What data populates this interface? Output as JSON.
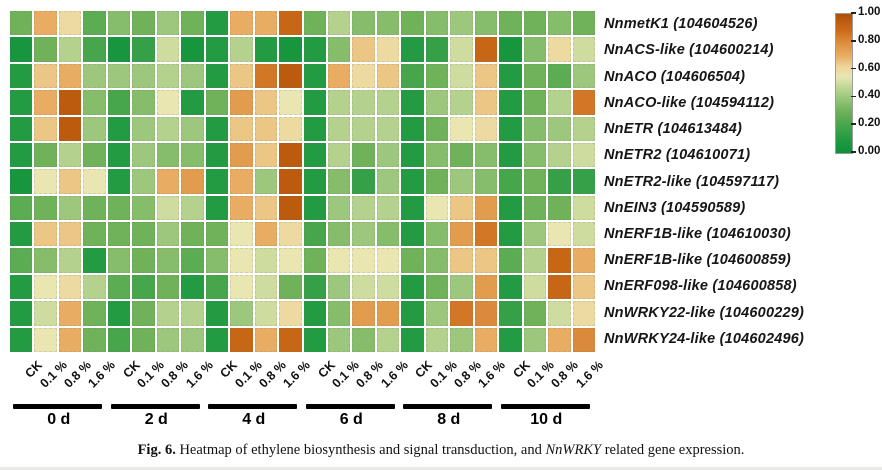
{
  "figure": {
    "caption": {
      "label": "Fig. 6.",
      "text_before_italic": "Heatmap of ethylene biosynthesis and signal transduction, and",
      "italic_term": "NnWRKY",
      "text_after_italic": "related gene expression."
    }
  },
  "colorbar": {
    "ticks": [
      "1.00",
      "0.80",
      "0.60",
      "0.40",
      "0.20",
      "0.00"
    ]
  },
  "colors": {
    "scale_stops": [
      [
        0.0,
        "#0c9138"
      ],
      [
        0.1,
        "#229b43"
      ],
      [
        0.2,
        "#47a54b"
      ],
      [
        0.3,
        "#6fb25a"
      ],
      [
        0.4,
        "#9cc77c"
      ],
      [
        0.48,
        "#c3d898"
      ],
      [
        0.55,
        "#e9e6b2"
      ],
      [
        0.62,
        "#eed59a"
      ],
      [
        0.7,
        "#e8ad62"
      ],
      [
        0.78,
        "#de9242"
      ],
      [
        0.88,
        "#cc6c18"
      ],
      [
        1.0,
        "#b04f07"
      ]
    ],
    "group_bar_color": "#000000"
  },
  "chart_data": {
    "type": "heatmap",
    "title": "Heatmap of ethylene biosynthesis and signal transduction, and NnWRKY related gene expression",
    "value_range": [
      0,
      1
    ],
    "legend_position": "right",
    "genes": [
      "NnmetK1 (104604526)",
      "NnACS-like (104600214)",
      "NnACO (104606504)",
      "NnACO-like (104594112)",
      "NnETR (104613484)",
      "NnETR2 (104610071)",
      "NnETR2-like (104597117)",
      "NnEIN3 (104590589)",
      "NnERF1B-like (104610030)",
      "NnERF1B-like (104600859)",
      "NnERF098-like (104600858)",
      "NnWRKY22-like (104600229)",
      "NnWRKY24-like (104602496)"
    ],
    "time_groups": [
      "0 d",
      "2 d",
      "4 d",
      "6 d",
      "8 d",
      "10 d"
    ],
    "treatments": [
      "CK",
      "0.1 %",
      "0.8 %",
      "1.6 %"
    ],
    "matrix": [
      [
        0.3,
        0.7,
        0.6,
        0.25,
        0.35,
        0.3,
        0.4,
        0.3,
        0.1,
        0.7,
        0.7,
        0.9,
        0.3,
        0.45,
        0.35,
        0.35,
        0.3,
        0.35,
        0.4,
        0.35,
        0.3,
        0.3,
        0.35,
        0.3
      ],
      [
        0.05,
        0.3,
        0.45,
        0.2,
        0.05,
        0.15,
        0.5,
        0.05,
        0.1,
        0.45,
        0.1,
        0.05,
        0.1,
        0.35,
        0.65,
        0.6,
        0.1,
        0.15,
        0.5,
        0.9,
        0.05,
        0.35,
        0.6,
        0.5
      ],
      [
        0.1,
        0.65,
        0.7,
        0.4,
        0.4,
        0.4,
        0.45,
        0.4,
        0.1,
        0.65,
        0.85,
        0.95,
        0.1,
        0.7,
        0.6,
        0.65,
        0.2,
        0.3,
        0.5,
        0.65,
        0.1,
        0.3,
        0.25,
        0.4
      ],
      [
        0.1,
        0.7,
        0.95,
        0.35,
        0.2,
        0.35,
        0.55,
        0.1,
        0.3,
        0.75,
        0.65,
        0.55,
        0.1,
        0.45,
        0.45,
        0.45,
        0.1,
        0.4,
        0.45,
        0.65,
        0.1,
        0.3,
        0.45,
        0.85
      ],
      [
        0.1,
        0.65,
        0.95,
        0.4,
        0.1,
        0.4,
        0.45,
        0.4,
        0.1,
        0.65,
        0.65,
        0.6,
        0.1,
        0.45,
        0.45,
        0.45,
        0.1,
        0.3,
        0.55,
        0.6,
        0.1,
        0.35,
        0.4,
        0.45
      ],
      [
        0.1,
        0.3,
        0.45,
        0.3,
        0.1,
        0.4,
        0.35,
        0.35,
        0.1,
        0.75,
        0.65,
        0.95,
        0.1,
        0.45,
        0.3,
        0.4,
        0.1,
        0.35,
        0.3,
        0.35,
        0.1,
        0.35,
        0.45,
        0.5
      ],
      [
        0.05,
        0.55,
        0.65,
        0.55,
        0.1,
        0.4,
        0.7,
        0.75,
        0.1,
        0.7,
        0.4,
        0.95,
        0.1,
        0.35,
        0.15,
        0.4,
        0.1,
        0.3,
        0.4,
        0.35,
        0.2,
        0.3,
        0.15,
        0.15
      ],
      [
        0.25,
        0.3,
        0.4,
        0.3,
        0.3,
        0.35,
        0.5,
        0.45,
        0.1,
        0.7,
        0.65,
        0.95,
        0.1,
        0.4,
        0.45,
        0.45,
        0.1,
        0.55,
        0.65,
        0.75,
        0.1,
        0.3,
        0.3,
        0.5
      ],
      [
        0.1,
        0.65,
        0.65,
        0.3,
        0.3,
        0.3,
        0.4,
        0.3,
        0.3,
        0.55,
        0.7,
        0.6,
        0.2,
        0.35,
        0.4,
        0.35,
        0.1,
        0.35,
        0.75,
        0.85,
        0.1,
        0.4,
        0.55,
        0.5
      ],
      [
        0.25,
        0.35,
        0.45,
        0.1,
        0.35,
        0.3,
        0.35,
        0.25,
        0.35,
        0.55,
        0.5,
        0.55,
        0.3,
        0.55,
        0.55,
        0.55,
        0.3,
        0.35,
        0.65,
        0.65,
        0.25,
        0.45,
        0.9,
        0.7
      ],
      [
        0.1,
        0.55,
        0.6,
        0.45,
        0.25,
        0.2,
        0.3,
        0.1,
        0.2,
        0.55,
        0.5,
        0.3,
        0.15,
        0.4,
        0.5,
        0.5,
        0.1,
        0.3,
        0.4,
        0.75,
        0.1,
        0.5,
        0.9,
        0.65
      ],
      [
        0.1,
        0.5,
        0.7,
        0.3,
        0.1,
        0.3,
        0.45,
        0.45,
        0.1,
        0.4,
        0.5,
        0.6,
        0.1,
        0.35,
        0.75,
        0.75,
        0.1,
        0.4,
        0.85,
        0.8,
        0.15,
        0.3,
        0.5,
        0.6
      ],
      [
        0.1,
        0.55,
        0.7,
        0.3,
        0.2,
        0.3,
        0.4,
        0.4,
        0.1,
        0.9,
        0.7,
        0.9,
        0.1,
        0.4,
        0.35,
        0.45,
        0.1,
        0.45,
        0.4,
        0.7,
        0.1,
        0.4,
        0.7,
        0.8
      ]
    ]
  }
}
